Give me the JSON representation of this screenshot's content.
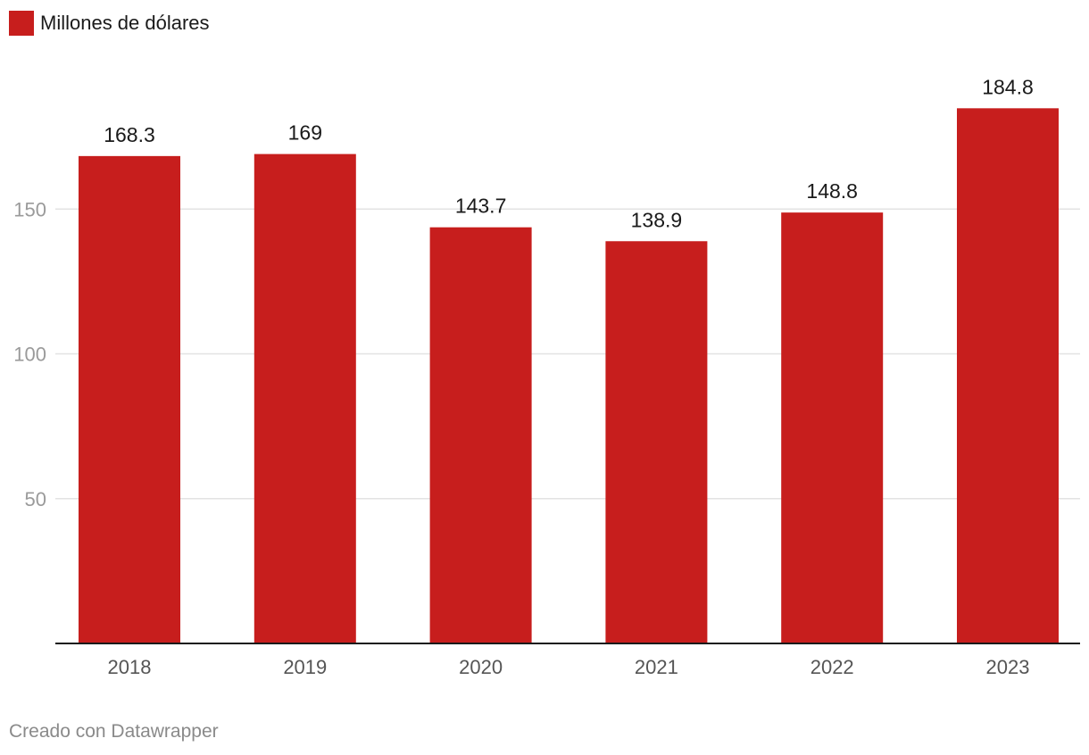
{
  "legend": {
    "label": "Millones de dólares",
    "color": "#c71e1d"
  },
  "footer": {
    "credit": "Creado con Datawrapper"
  },
  "colors": {
    "bar": "#c71e1d",
    "grid": "#e3e3e3",
    "axis": "#1a1a1a",
    "tick_text": "#9a9a9a",
    "xtick_text": "#555555",
    "data_label": "#1a1a1a"
  },
  "chart_data": {
    "type": "bar",
    "categories": [
      "2018",
      "2019",
      "2020",
      "2021",
      "2022",
      "2023"
    ],
    "series": [
      {
        "name": "Millones de dólares",
        "values": [
          168.3,
          169,
          143.7,
          138.9,
          148.8,
          184.8
        ],
        "labels": [
          "168.3",
          "169",
          "143.7",
          "138.9",
          "148.8",
          "184.8"
        ]
      }
    ],
    "yticks": [
      50,
      100,
      150
    ],
    "ylim": [
      0,
      185
    ],
    "grid": true,
    "legend_position": "top-left",
    "title": "",
    "xlabel": "",
    "ylabel": ""
  }
}
